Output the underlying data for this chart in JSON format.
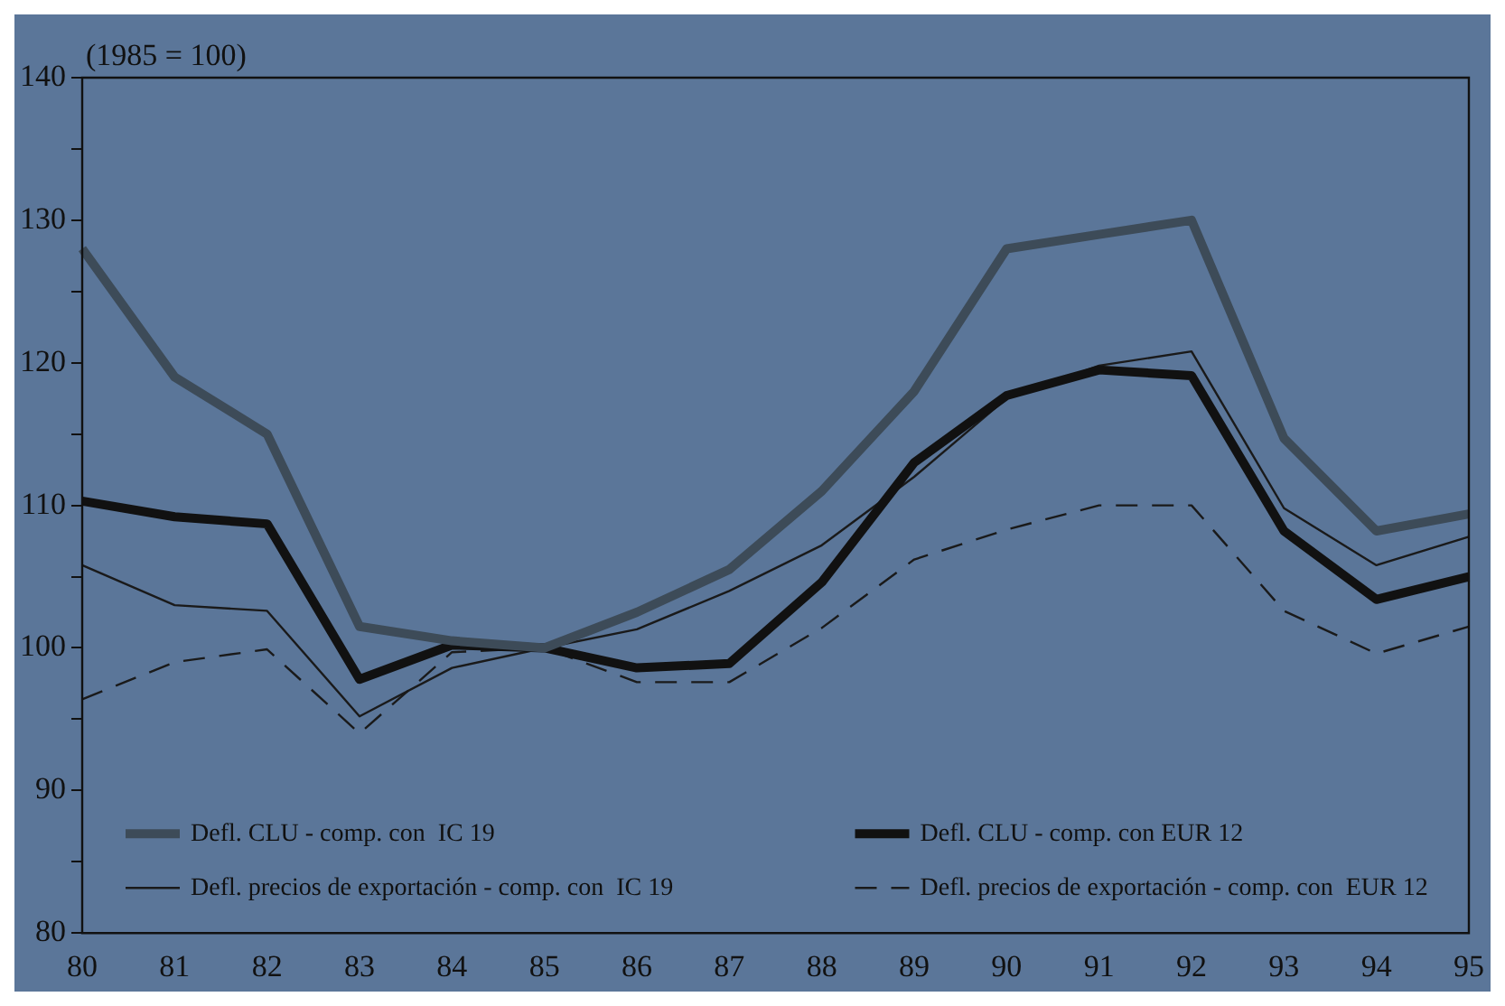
{
  "chart_data": {
    "type": "line",
    "ylabel": "(1985 = 100)",
    "categories": [
      "80",
      "81",
      "82",
      "83",
      "84",
      "85",
      "86",
      "87",
      "88",
      "89",
      "90",
      "91",
      "92",
      "93",
      "94",
      "95"
    ],
    "ylim": [
      80,
      140
    ],
    "yticks": [
      80,
      {
        "value": 85,
        "label": null
      },
      90,
      {
        "value": 95,
        "label": null
      },
      100,
      {
        "value": 105,
        "label": null
      },
      110,
      {
        "value": 115,
        "label": null
      },
      120,
      {
        "value": 125,
        "label": null
      },
      130,
      {
        "value": 135,
        "label": null
      },
      140
    ],
    "grid": false,
    "legend": "bottom",
    "marker": "none",
    "series": [
      {
        "name": "Defl. CLU - comp. con  IC 19",
        "color": "#3d4b58",
        "line_style": "solid",
        "values": [
          128,
          119,
          115,
          101.5,
          100.5,
          100,
          102.5,
          105.5,
          111,
          118,
          128,
          129,
          130,
          114.7,
          108.2,
          109.4
        ]
      },
      {
        "name": "Defl. CLU - comp. con EUR 12",
        "color": "#111111",
        "line_style": "solid",
        "values": [
          110.3,
          109.2,
          108.7,
          97.8,
          100.2,
          100,
          98.6,
          98.9,
          104.6,
          113,
          117.7,
          119.5,
          119.1,
          108.2,
          103.4,
          105
        ]
      },
      {
        "name": "Defl. precios de exportación - comp. con  IC 19",
        "color": "#1a1a1a",
        "line_style": "solid",
        "values": [
          105.8,
          103,
          102.6,
          95.2,
          98.6,
          100,
          101.3,
          104,
          107.2,
          112,
          117.5,
          119.8,
          120.8,
          109.8,
          105.8,
          107.8
        ]
      },
      {
        "name": "Defl. precios de exportación - comp. con  EUR 12",
        "color": "#1a1a1a",
        "line_style": "dashed",
        "values": [
          96.4,
          99,
          99.9,
          94,
          99.7,
          100,
          97.6,
          97.6,
          101.4,
          106.2,
          108.3,
          110,
          110,
          102.6,
          99.6,
          101.5
        ]
      }
    ]
  }
}
